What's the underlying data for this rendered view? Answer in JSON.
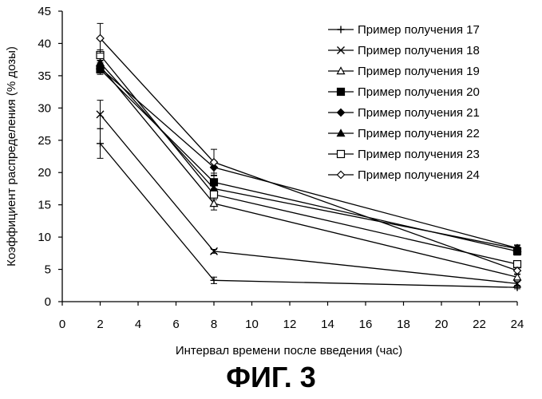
{
  "chart_data": {
    "type": "line",
    "xlabel": "Интервал времени после введения (час)",
    "ylabel": "Коэффициент распределения (% дозы)",
    "xlim": [
      0,
      24
    ],
    "ylim": [
      0,
      45
    ],
    "x_ticks": [
      "0",
      "2",
      "4",
      "6",
      "8",
      "10",
      "12",
      "14",
      "16",
      "18",
      "20",
      "22",
      "24"
    ],
    "y_ticks": [
      "0",
      "5",
      "10",
      "15",
      "20",
      "25",
      "30",
      "35",
      "40",
      "45"
    ],
    "x": [
      2,
      8,
      24
    ],
    "legend_position": "top-right",
    "grid": false,
    "series": [
      {
        "name": "Пример получения 17",
        "marker": "plus",
        "values": [
          24.5,
          3.3,
          2.2
        ],
        "errors": [
          2.3,
          0.5,
          0.2
        ]
      },
      {
        "name": "Пример получения 18",
        "marker": "cross",
        "values": [
          29.0,
          7.8,
          2.8
        ],
        "errors": [
          2.2,
          0.3,
          0.3
        ]
      },
      {
        "name": "Пример получения 19",
        "marker": "triangle-open",
        "values": [
          36.5,
          15.2,
          3.8
        ],
        "errors": [
          0.8,
          1.0,
          0.4
        ]
      },
      {
        "name": "Пример получения 20",
        "marker": "square-filled",
        "values": [
          36.0,
          18.5,
          7.8
        ],
        "errors": [
          0.8,
          1.0,
          0.6
        ]
      },
      {
        "name": "Пример получения 21",
        "marker": "diamond-filled",
        "values": [
          36.2,
          20.8,
          8.3
        ],
        "errors": [
          0.8,
          0.9,
          0.5
        ]
      },
      {
        "name": "Пример получения 22",
        "marker": "triangle-filled",
        "values": [
          37.0,
          17.5,
          8.2
        ],
        "errors": [
          0.7,
          0.9,
          0.5
        ]
      },
      {
        "name": "Пример получения 23",
        "marker": "square-open",
        "values": [
          38.2,
          16.6,
          5.8
        ],
        "errors": [
          0.8,
          0.8,
          0.5
        ]
      },
      {
        "name": "Пример получения 24",
        "marker": "diamond-open",
        "values": [
          40.8,
          21.6,
          4.8
        ],
        "errors": [
          2.3,
          2.0,
          0.5
        ]
      }
    ]
  },
  "caption": "ФИГ. 3"
}
